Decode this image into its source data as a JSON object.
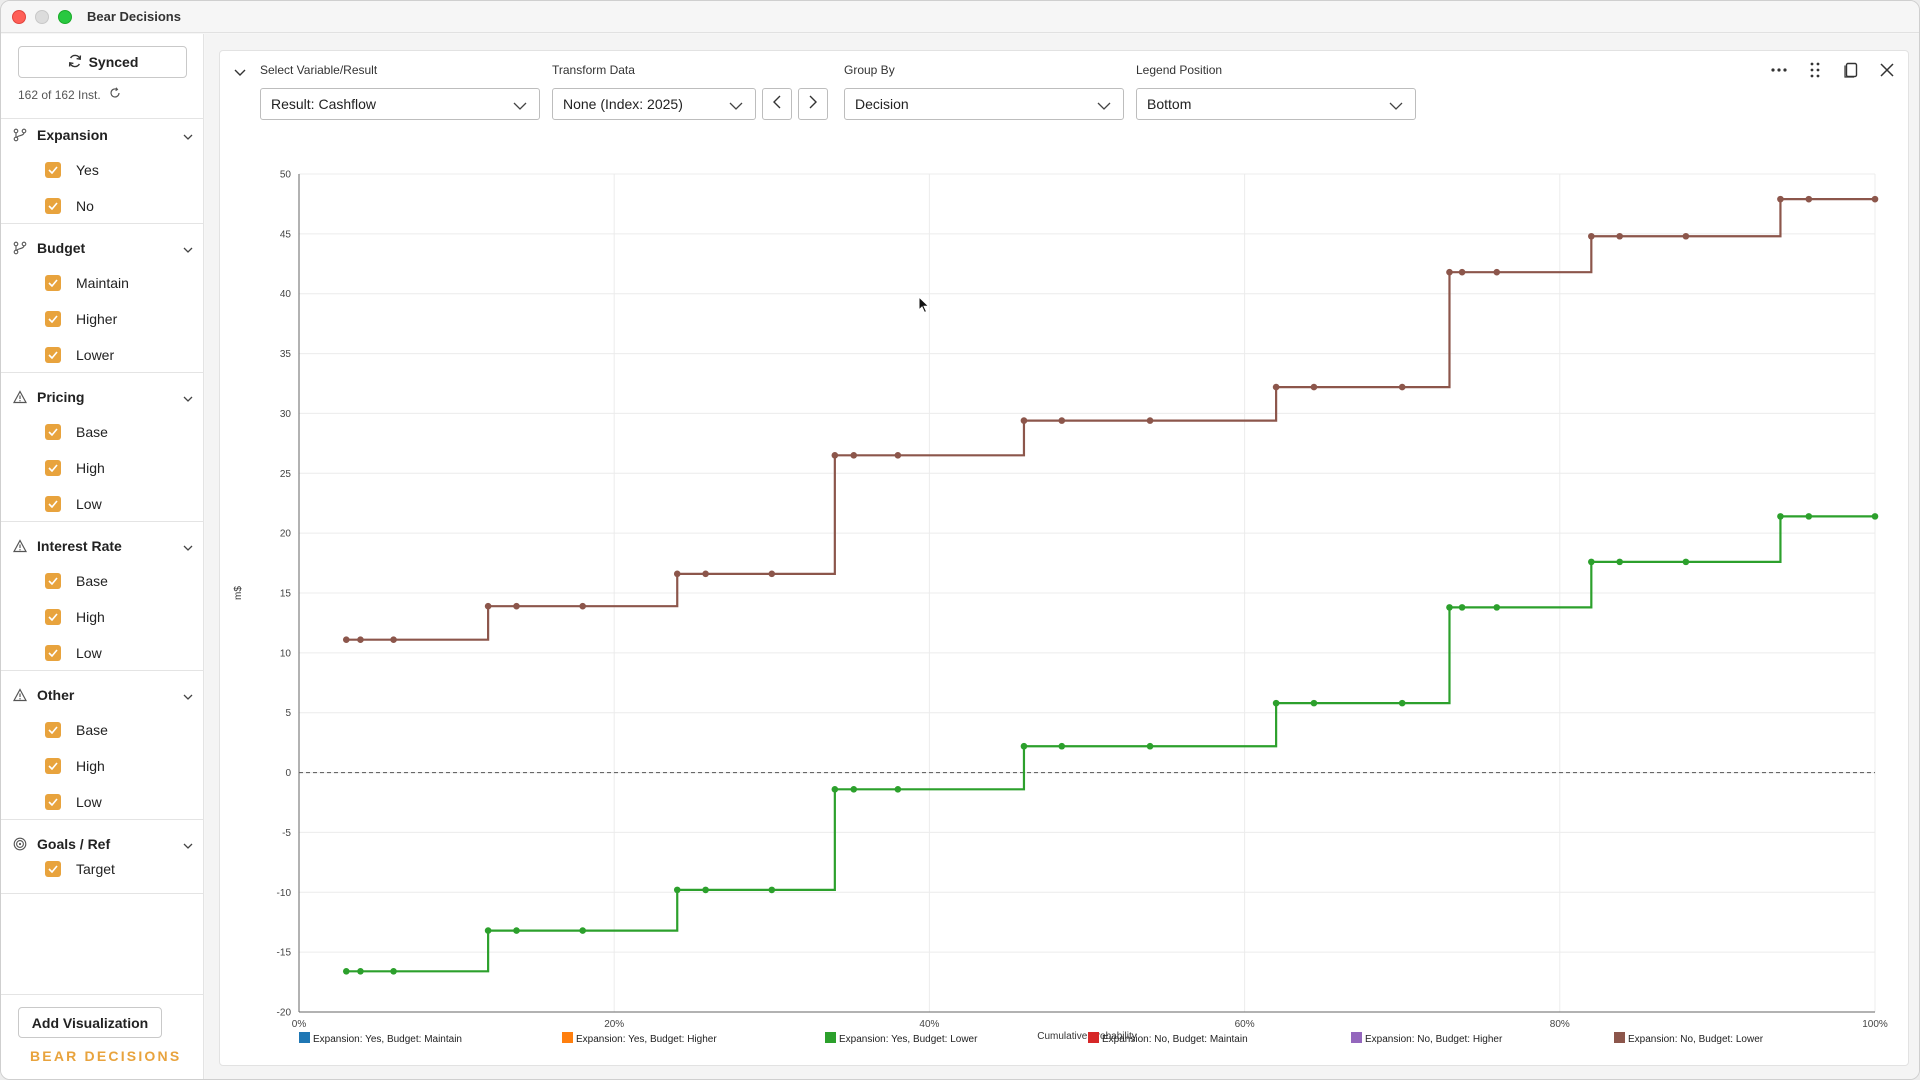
{
  "window": {
    "title": "Bear Decisions"
  },
  "sidebar": {
    "synced_label": "Synced",
    "instances_text": "162 of 162 Inst.",
    "groups": [
      {
        "label": "Expansion",
        "icon": "branch-icon",
        "items": [
          "Yes",
          "No"
        ]
      },
      {
        "label": "Budget",
        "icon": "branch-icon",
        "items": [
          "Maintain",
          "Higher",
          "Lower"
        ]
      },
      {
        "label": "Pricing",
        "icon": "warning-triangle-icon",
        "items": [
          "Base",
          "High",
          "Low"
        ]
      },
      {
        "label": "Interest Rate",
        "icon": "warning-triangle-icon",
        "items": [
          "Base",
          "High",
          "Low"
        ]
      },
      {
        "label": "Other",
        "icon": "warning-triangle-icon",
        "items": [
          "Base",
          "High",
          "Low"
        ]
      },
      {
        "label": "Goals / Ref",
        "icon": "target-icon",
        "items": [
          "Target"
        ]
      }
    ],
    "add_visualization_label": "Add Visualization",
    "brand_text": "BEAR DECISIONS"
  },
  "controls": {
    "variable_label": "Select Variable/Result",
    "variable_value": "Result: Cashflow",
    "transform_label": "Transform Data",
    "transform_value": "None (Index: 2025)",
    "groupby_label": "Group By",
    "groupby_value": "Decision",
    "legend_label": "Legend Position",
    "legend_value": "Bottom"
  },
  "colors": {
    "accent": "#e8a33d",
    "series": [
      "#1f77b4",
      "#ff7f0e",
      "#2ca02c",
      "#d62728",
      "#9467bd",
      "#8c564b"
    ]
  },
  "chart_data": {
    "type": "line",
    "step": true,
    "title": "",
    "xlabel": "Cumulative Probability",
    "ylabel": "m$",
    "xlim": [
      0,
      100
    ],
    "ylim": [
      -20,
      50
    ],
    "x_ticks": [
      0,
      20,
      40,
      60,
      80,
      100
    ],
    "x_tick_labels": [
      "0%",
      "20%",
      "40%",
      "60%",
      "80%",
      "100%"
    ],
    "y_ticks": [
      -20,
      -15,
      -10,
      -5,
      0,
      5,
      10,
      15,
      20,
      25,
      30,
      35,
      40,
      45,
      50
    ],
    "y_tick_labels": [
      "-20",
      "-15",
      "-10",
      "-5",
      "0",
      "5",
      "10",
      "15",
      "20",
      "25",
      "30",
      "35",
      "40",
      "45",
      "50"
    ],
    "reference_line_y": 0,
    "grid": true,
    "legend_position": "bottom",
    "legend": [
      "Expansion: Yes, Budget: Maintain",
      "Expansion: Yes, Budget: Higher",
      "Expansion: Yes, Budget: Lower",
      "Expansion: No, Budget: Maintain",
      "Expansion: No, Budget: Higher",
      "Expansion: No, Budget: Lower"
    ],
    "series": [
      {
        "name": "Expansion: No, Budget: Lower",
        "color_index": 5,
        "x": [
          3,
          3.9,
          6,
          12,
          13.8,
          18,
          24,
          25.8,
          30,
          34,
          35.2,
          38,
          46,
          48.4,
          54,
          62,
          64.4,
          70,
          73,
          73.8,
          76,
          82,
          83.8,
          88,
          94,
          95.8,
          100
        ],
        "y": [
          11.1,
          11.1,
          11.1,
          13.9,
          13.9,
          13.9,
          16.6,
          16.6,
          16.6,
          26.5,
          26.5,
          26.5,
          29.4,
          29.4,
          29.4,
          32.2,
          32.2,
          32.2,
          41.8,
          41.8,
          41.8,
          44.8,
          44.8,
          44.8,
          47.9,
          47.9,
          47.9
        ]
      },
      {
        "name": "Expansion: Yes, Budget: Lower",
        "color_index": 2,
        "x": [
          3,
          3.9,
          6,
          12,
          13.8,
          18,
          24,
          25.8,
          30,
          34,
          35.2,
          38,
          46,
          48.4,
          54,
          62,
          64.4,
          70,
          73,
          73.8,
          76,
          82,
          83.8,
          88,
          94,
          95.8,
          100
        ],
        "y": [
          -16.6,
          -16.6,
          -16.6,
          -13.2,
          -13.2,
          -13.2,
          -9.8,
          -9.8,
          -9.8,
          -1.4,
          -1.4,
          -1.4,
          2.2,
          2.2,
          2.2,
          5.8,
          5.8,
          5.8,
          13.8,
          13.8,
          13.8,
          17.6,
          17.6,
          17.6,
          21.4,
          21.4,
          21.4
        ]
      }
    ]
  }
}
